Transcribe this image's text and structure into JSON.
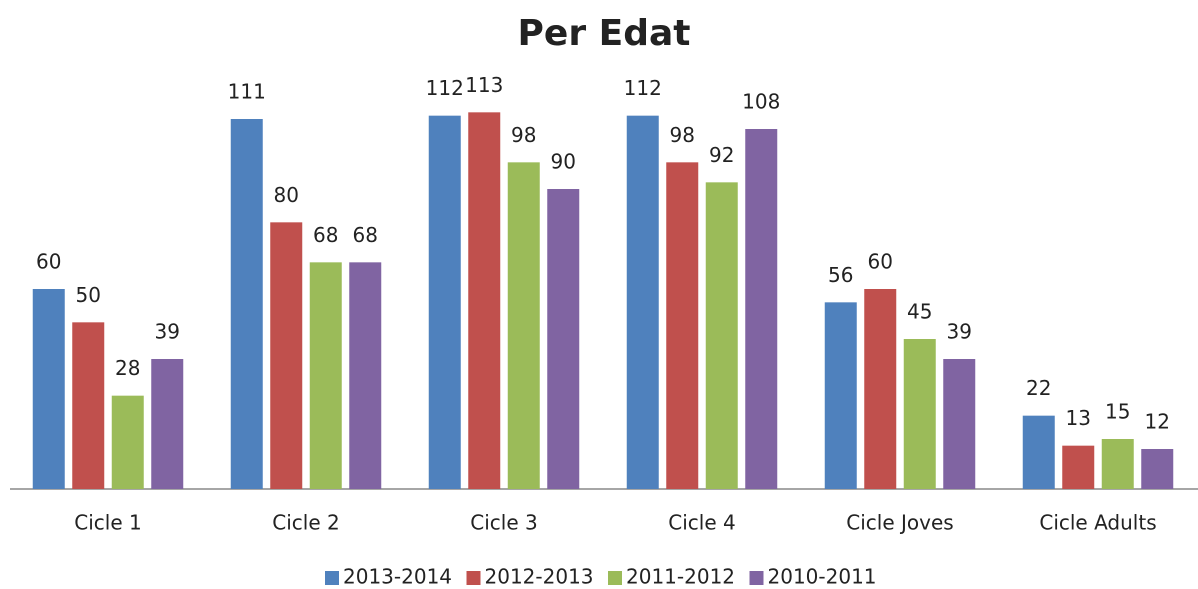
{
  "chart_data": {
    "type": "bar",
    "title": "Per Edat",
    "categories": [
      "Cicle 1",
      "Cicle 2",
      "Cicle 3",
      "Cicle 4",
      "Cicle Joves",
      "Cicle Adults"
    ],
    "series": [
      {
        "name": "2013-2014",
        "color": "#4f81bd",
        "values": [
          60,
          111,
          112,
          112,
          56,
          22
        ]
      },
      {
        "name": "2012-2013",
        "color": "#c0504d",
        "values": [
          50,
          80,
          113,
          98,
          60,
          13
        ]
      },
      {
        "name": "2011-2012",
        "color": "#9bbb59",
        "values": [
          28,
          68,
          98,
          92,
          45,
          15
        ]
      },
      {
        "name": "2010-2011",
        "color": "#8064a2",
        "values": [
          39,
          68,
          90,
          108,
          39,
          12
        ]
      }
    ],
    "ylim": [
      0,
      120
    ],
    "legend": "bottom"
  }
}
